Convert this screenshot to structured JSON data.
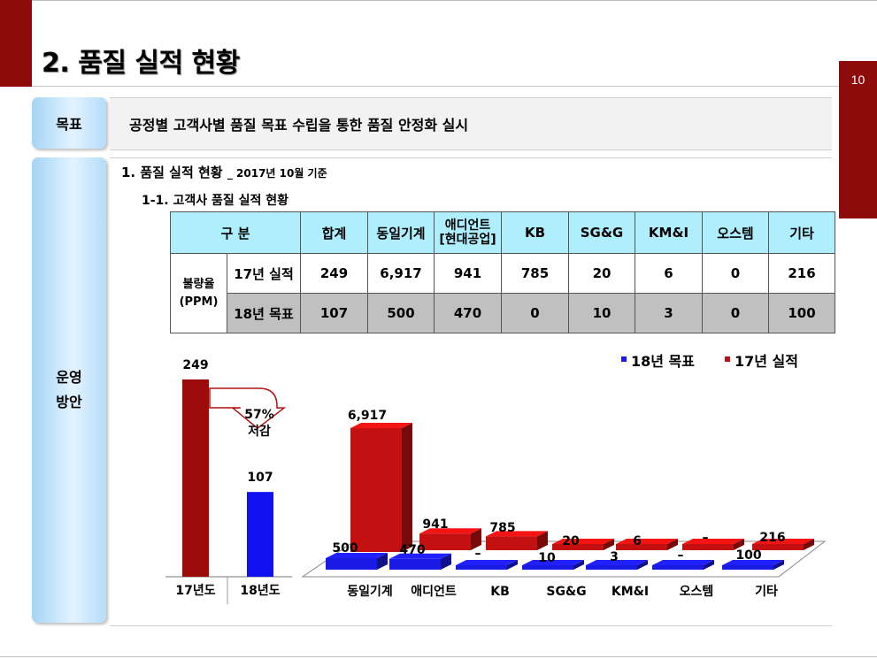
{
  "slide": {
    "title": "2. 품질 실적 현황",
    "page_number": "10"
  },
  "goal": {
    "label": "목표",
    "text": "공정별 고객사별 품질 목표 수립을 통한 품질 안정화 실시"
  },
  "ops": {
    "label_line1": "운영",
    "label_line2": "방안",
    "section_title": "1. 품질 실적 현황",
    "section_sub": "_ 2017년 10월 기준",
    "subsection_title": "1-1. 고객사 품질 실적 현황"
  },
  "table": {
    "header_group": "구 분",
    "header_cols": [
      "합계",
      "동일기계",
      "애디언트\n[현대공업]",
      "KB",
      "SG&G",
      "KM&I",
      "오스템",
      "기타"
    ],
    "row_group_line1": "불량율",
    "row_group_line2": "(PPM)",
    "rows": [
      {
        "label": "17년 실적",
        "values": [
          "249",
          "6,917",
          "941",
          "785",
          "20",
          "6",
          "0",
          "216"
        ]
      },
      {
        "label": "18년 목표",
        "values": [
          "107",
          "500",
          "470",
          "0",
          "10",
          "3",
          "0",
          "100"
        ]
      }
    ]
  },
  "chart_data": [
    {
      "type": "bar",
      "categories": [
        "17년도",
        "18년도"
      ],
      "values": [
        249,
        107
      ],
      "value_labels": [
        "249",
        "107"
      ],
      "annotation": "57%\n저감",
      "colors": [
        "#9c0a0a",
        "#1010f0"
      ]
    },
    {
      "type": "bar",
      "categories": [
        "동일기계",
        "애디언트",
        "KB",
        "SG&G",
        "KM&I",
        "오스템",
        "기타"
      ],
      "series": [
        {
          "name": "18년 목표",
          "values": [
            500,
            470,
            0,
            10,
            3,
            0,
            100
          ],
          "labels": [
            "500",
            "470",
            "–",
            "10",
            "3",
            "–",
            "100"
          ],
          "color": "#1a1ae6"
        },
        {
          "name": "17년 실적",
          "values": [
            6917,
            941,
            785,
            20,
            6,
            0,
            216
          ],
          "labels": [
            "6,917",
            "941",
            "785",
            "20",
            "6",
            "–",
            "216"
          ],
          "color": "#c41010"
        }
      ],
      "legend_position": "top-right"
    }
  ]
}
